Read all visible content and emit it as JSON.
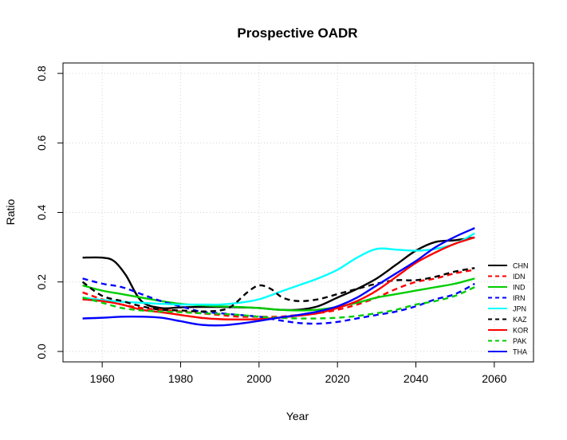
{
  "chart_data": {
    "type": "line",
    "title": "Prospective OADR",
    "xlabel": "Year",
    "ylabel": "Ratio",
    "xlim": [
      1950,
      2070
    ],
    "ylim": [
      -0.03,
      0.83
    ],
    "x_ticks": [
      1960,
      1980,
      2000,
      2020,
      2040,
      2060
    ],
    "y_ticks": [
      0.0,
      0.2,
      0.4,
      0.6,
      0.8
    ],
    "y_tick_labels": [
      "0.0",
      "0.2",
      "0.4",
      "0.6",
      "0.8"
    ],
    "grid": true,
    "legend_position": "right",
    "series": [
      {
        "name": "CHN",
        "color": "#000000",
        "dashed": false,
        "x": [
          1955,
          1960,
          1963,
          1966,
          1970,
          1975,
          1980,
          1985,
          1990,
          1995,
          2000,
          2005,
          2010,
          2015,
          2020,
          2025,
          2030,
          2035,
          2040,
          2045,
          2050,
          2055
        ],
        "y": [
          0.27,
          0.27,
          0.26,
          0.22,
          0.145,
          0.125,
          0.127,
          0.128,
          0.128,
          0.127,
          0.125,
          0.12,
          0.12,
          0.13,
          0.155,
          0.18,
          0.21,
          0.25,
          0.29,
          0.315,
          0.32,
          0.328
        ]
      },
      {
        "name": "IDN",
        "color": "#ff0000",
        "dashed": true,
        "x": [
          1955,
          1960,
          1965,
          1970,
          1975,
          1980,
          1985,
          1990,
          1995,
          2000,
          2005,
          2010,
          2015,
          2020,
          2025,
          2030,
          2035,
          2040,
          2045,
          2050,
          2055
        ],
        "y": [
          0.17,
          0.15,
          0.135,
          0.125,
          0.12,
          0.115,
          0.11,
          0.105,
          0.1,
          0.1,
          0.1,
          0.105,
          0.11,
          0.12,
          0.135,
          0.155,
          0.18,
          0.2,
          0.21,
          0.225,
          0.235
        ]
      },
      {
        "name": "IND",
        "color": "#00cd00",
        "dashed": false,
        "x": [
          1955,
          1960,
          1965,
          1970,
          1975,
          1980,
          1985,
          1990,
          1995,
          2000,
          2005,
          2010,
          2015,
          2020,
          2025,
          2030,
          2035,
          2040,
          2045,
          2050,
          2055
        ],
        "y": [
          0.19,
          0.175,
          0.165,
          0.155,
          0.145,
          0.137,
          0.133,
          0.13,
          0.128,
          0.125,
          0.12,
          0.118,
          0.12,
          0.128,
          0.14,
          0.155,
          0.165,
          0.175,
          0.185,
          0.195,
          0.21
        ]
      },
      {
        "name": "IRN",
        "color": "#0000ff",
        "dashed": true,
        "x": [
          1955,
          1960,
          1965,
          1970,
          1975,
          1980,
          1985,
          1990,
          1995,
          2000,
          2005,
          2010,
          2015,
          2020,
          2025,
          2030,
          2035,
          2040,
          2045,
          2050,
          2055
        ],
        "y": [
          0.21,
          0.195,
          0.185,
          0.165,
          0.145,
          0.13,
          0.115,
          0.11,
          0.105,
          0.1,
          0.09,
          0.082,
          0.08,
          0.085,
          0.095,
          0.105,
          0.115,
          0.13,
          0.15,
          0.165,
          0.195
        ]
      },
      {
        "name": "JPN",
        "color": "#00ffff",
        "dashed": false,
        "x": [
          1955,
          1960,
          1965,
          1970,
          1975,
          1980,
          1985,
          1990,
          1995,
          2000,
          2005,
          2010,
          2015,
          2020,
          2025,
          2030,
          2035,
          2040,
          2045,
          2050,
          2055
        ],
        "y": [
          0.155,
          0.148,
          0.143,
          0.14,
          0.137,
          0.135,
          0.135,
          0.135,
          0.14,
          0.15,
          0.17,
          0.19,
          0.21,
          0.235,
          0.27,
          0.295,
          0.293,
          0.29,
          0.295,
          0.31,
          0.34
        ]
      },
      {
        "name": "KAZ",
        "color": "#000000",
        "dashed": true,
        "x": [
          1955,
          1960,
          1965,
          1970,
          1975,
          1980,
          1985,
          1990,
          1993,
          1997,
          2000,
          2003,
          2006,
          2010,
          2015,
          2020,
          2025,
          2030,
          2035,
          2040,
          2045,
          2050,
          2055
        ],
        "y": [
          0.2,
          0.16,
          0.145,
          0.13,
          0.12,
          0.118,
          0.115,
          0.118,
          0.13,
          0.17,
          0.19,
          0.18,
          0.155,
          0.145,
          0.15,
          0.165,
          0.18,
          0.195,
          0.205,
          0.205,
          0.215,
          0.23,
          0.24
        ]
      },
      {
        "name": "KOR",
        "color": "#ff0000",
        "dashed": false,
        "x": [
          1955,
          1960,
          1965,
          1970,
          1975,
          1980,
          1985,
          1990,
          1995,
          2000,
          2005,
          2010,
          2015,
          2020,
          2025,
          2030,
          2035,
          2040,
          2045,
          2050,
          2055
        ],
        "y": [
          0.15,
          0.145,
          0.135,
          0.12,
          0.113,
          0.105,
          0.097,
          0.093,
          0.092,
          0.093,
          0.097,
          0.103,
          0.11,
          0.125,
          0.145,
          0.175,
          0.215,
          0.255,
          0.285,
          0.31,
          0.328
        ]
      },
      {
        "name": "PAK",
        "color": "#00cd00",
        "dashed": true,
        "x": [
          1955,
          1960,
          1965,
          1970,
          1975,
          1980,
          1985,
          1990,
          1995,
          2000,
          2005,
          2010,
          2015,
          2020,
          2025,
          2030,
          2035,
          2040,
          2045,
          2050,
          2055
        ],
        "y": [
          0.155,
          0.14,
          0.125,
          0.118,
          0.115,
          0.113,
          0.11,
          0.108,
          0.105,
          0.1,
          0.097,
          0.095,
          0.095,
          0.097,
          0.102,
          0.11,
          0.12,
          0.135,
          0.145,
          0.16,
          0.185
        ]
      },
      {
        "name": "THA",
        "color": "#0000ff",
        "dashed": false,
        "x": [
          1955,
          1960,
          1965,
          1970,
          1975,
          1980,
          1985,
          1990,
          1995,
          2000,
          2005,
          2010,
          2015,
          2020,
          2025,
          2030,
          2035,
          2040,
          2045,
          2050,
          2055
        ],
        "y": [
          0.095,
          0.097,
          0.1,
          0.1,
          0.097,
          0.087,
          0.077,
          0.075,
          0.08,
          0.088,
          0.097,
          0.105,
          0.115,
          0.13,
          0.155,
          0.19,
          0.225,
          0.26,
          0.3,
          0.33,
          0.355
        ]
      }
    ]
  }
}
